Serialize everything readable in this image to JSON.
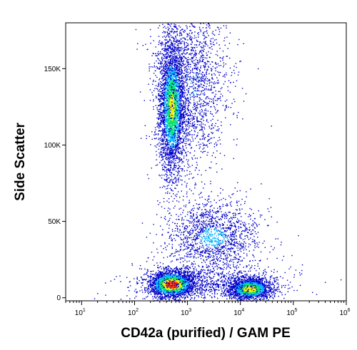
{
  "chart_data": {
    "type": "scatter",
    "style": "density-dot-plot",
    "xlabel": "CD42a (purified) / GAM PE",
    "ylabel": "Side Scatter",
    "x_scale": "log",
    "xlim": [
      5,
      1000000
    ],
    "ylim": [
      -2000,
      180000
    ],
    "x_ticks": [
      {
        "value": 10,
        "base": "10",
        "exp": "1"
      },
      {
        "value": 100,
        "base": "10",
        "exp": "2"
      },
      {
        "value": 1000,
        "base": "10",
        "exp": "3"
      },
      {
        "value": 10000,
        "base": "10",
        "exp": "4"
      },
      {
        "value": 100000,
        "base": "10",
        "exp": "5"
      },
      {
        "value": 1000000,
        "base": "10",
        "exp": "6"
      }
    ],
    "y_ticks": [
      {
        "value": 0,
        "label": "0"
      },
      {
        "value": 50000,
        "label": "50K"
      },
      {
        "value": 100000,
        "label": "100K"
      },
      {
        "value": 150000,
        "label": "150K"
      }
    ],
    "populations": [
      {
        "x": 500,
        "y": 125000,
        "log_spread_x": 0.12,
        "spread_y": 22000,
        "count": 3400,
        "peak": 0.6
      },
      {
        "x": 1200,
        "y": 140000,
        "log_spread_x": 0.35,
        "spread_y": 30000,
        "count": 1800,
        "peak": 0.15
      },
      {
        "x": 3000,
        "y": 40000,
        "log_spread_x": 0.45,
        "spread_y": 12000,
        "count": 1500,
        "peak": 0.2
      },
      {
        "x": 500,
        "y": 9000,
        "log_spread_x": 0.22,
        "spread_y": 4500,
        "count": 3200,
        "peak": 1.0
      },
      {
        "x": 15000,
        "y": 6000,
        "log_spread_x": 0.2,
        "spread_y": 3500,
        "count": 1800,
        "peak": 0.75
      },
      {
        "x": 2500,
        "y": 10000,
        "log_spread_x": 0.7,
        "spread_y": 6000,
        "count": 900,
        "peak": 0.1
      }
    ],
    "colors": {
      "low": "#0000c8",
      "mid_low": "#00b4ff",
      "mid": "#00e070",
      "mid_high": "#f0f000",
      "high": "#ff3000"
    },
    "grid": false,
    "legend": "none"
  }
}
